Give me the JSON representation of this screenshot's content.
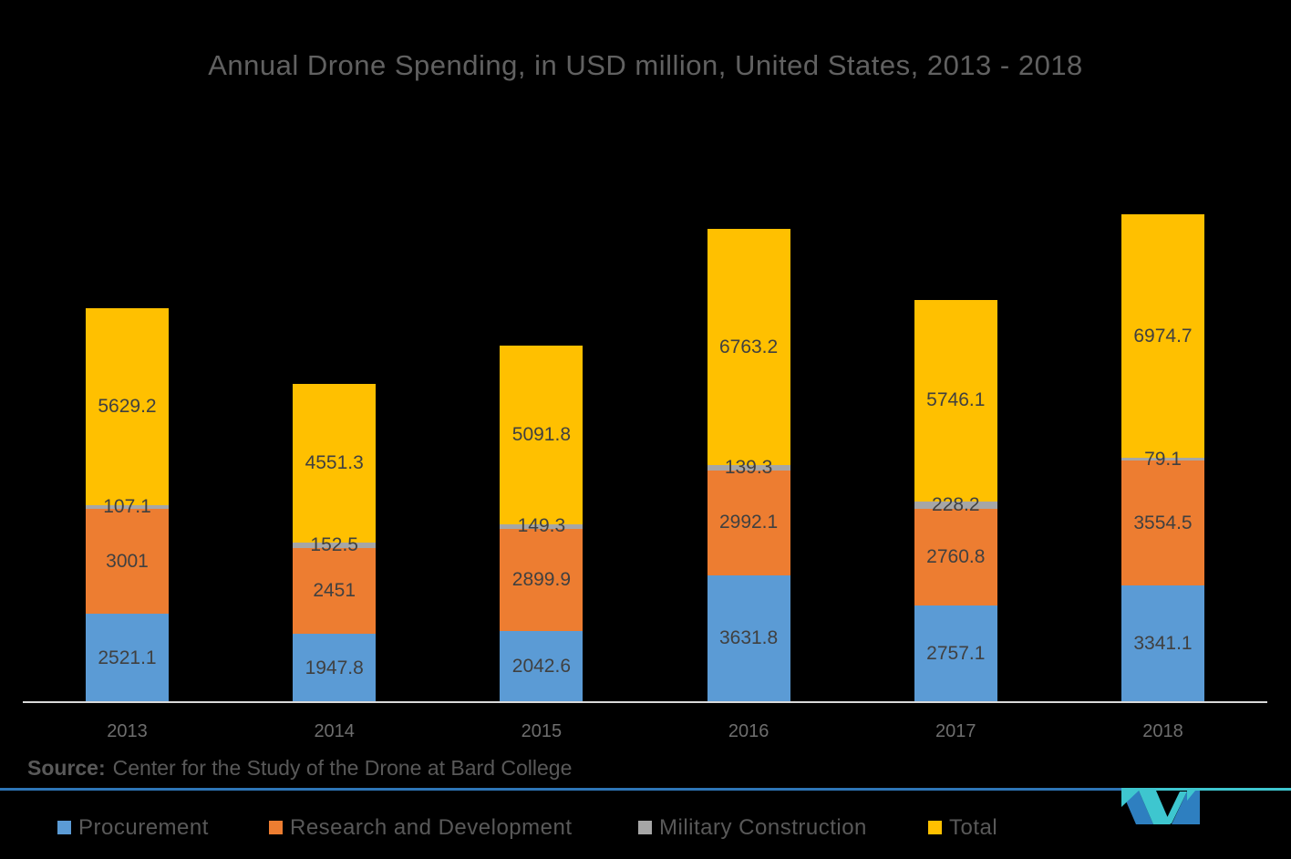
{
  "title": "Annual Drone Spending, in USD million, United States, 2013 - 2018",
  "source": {
    "label": "Source:",
    "text": "Center for the Study of the Drone at Bard College"
  },
  "chart_data": {
    "type": "bar",
    "stacked": true,
    "title": "Annual Drone Spending, in USD million, United States, 2013 - 2018",
    "xlabel": "",
    "ylabel": "",
    "y_axis_visible": false,
    "grid": false,
    "value_labels": true,
    "legend_position": "bottom",
    "ylim": [
      0,
      14000
    ],
    "categories": [
      "2013",
      "2014",
      "2015",
      "2016",
      "2017",
      "2018"
    ],
    "series": [
      {
        "name": "Procurement",
        "color": "#5B9BD5",
        "values": [
          2521.1,
          1947.8,
          2042.6,
          3631.8,
          2757.1,
          3341.1
        ]
      },
      {
        "name": "Research and Development",
        "color": "#ED7D31",
        "values": [
          3001,
          2451,
          2899.9,
          2992.1,
          2760.8,
          3554.5
        ]
      },
      {
        "name": "Military Construction",
        "color": "#A6A6A6",
        "values": [
          107.1,
          152.5,
          149.3,
          139.3,
          228.2,
          79.1
        ]
      },
      {
        "name": "Total",
        "color": "#FFC000",
        "values": [
          5629.2,
          4551.3,
          5091.8,
          6763.2,
          5746.1,
          6974.7
        ]
      }
    ]
  },
  "legend": {
    "items": [
      {
        "label": "Procurement",
        "color": "#5B9BD5"
      },
      {
        "label": "Research and Development",
        "color": "#ED7D31"
      },
      {
        "label": "Military Construction",
        "color": "#A6A6A6"
      },
      {
        "label": "Total",
        "color": "#FFC000"
      }
    ]
  },
  "logo": {
    "name": "mordor-intelligence-logo",
    "blue": "#2E7FC0",
    "teal": "#3EC6CF"
  },
  "colors": {
    "background": "#000000",
    "title_text": "#616161",
    "label_text": "#404040",
    "axis_text": "#6e6e6e",
    "source_text": "#595959",
    "legend_text": "#595959",
    "axis_line": "#d9d9d9",
    "rule_blue": "#2E75B6",
    "rule_teal": "#3EC6CF"
  }
}
